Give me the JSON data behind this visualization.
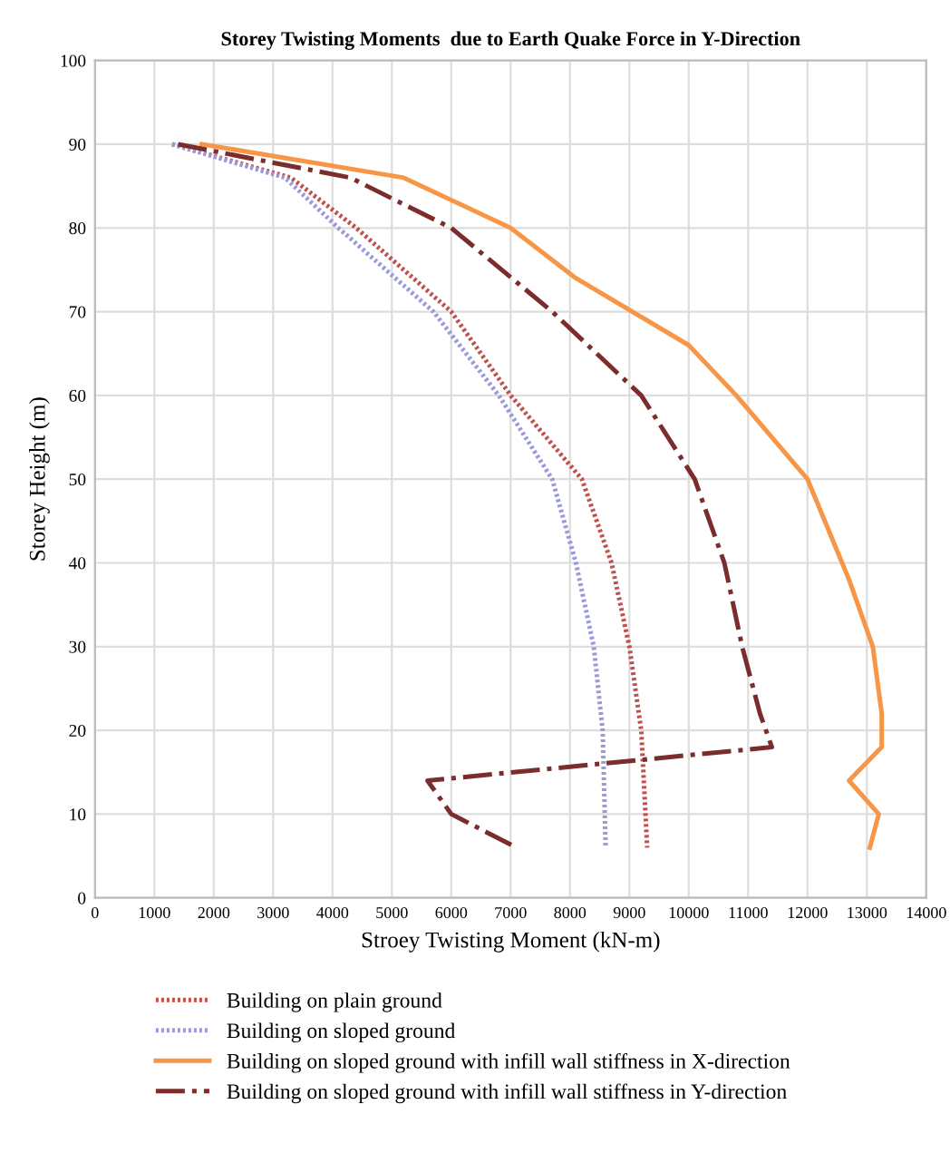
{
  "chart_data": {
    "type": "line",
    "title": "Storey Twisting Moments  due to Earth Quake Force in Y-Direction",
    "xlabel": "Stroey Twisting Moment (kN-m)",
    "ylabel": "Storey Height (m)",
    "xlim": [
      0,
      14000
    ],
    "xticks": [
      0,
      1000,
      2000,
      3000,
      4000,
      5000,
      6000,
      7000,
      8000,
      9000,
      10000,
      11000,
      12000,
      13000,
      14000
    ],
    "ylim": [
      0,
      100
    ],
    "yticks": [
      0,
      10,
      20,
      30,
      40,
      50,
      60,
      70,
      80,
      90,
      100
    ],
    "grid": true,
    "legend": "bottom",
    "marker": "none",
    "series": [
      {
        "name": "Building on plain ground",
        "color": "#c0504d",
        "line_style": "dotted",
        "x": [
          1300,
          3300,
          4400,
          6000,
          7000,
          8200,
          8700,
          9000,
          9200,
          9300
        ],
        "values": [
          90,
          86,
          80,
          70,
          60,
          50,
          40,
          30,
          20,
          6
        ]
      },
      {
        "name": "Building on sloped ground",
        "color": "#9999dd",
        "line_style": "dotted",
        "x": [
          1300,
          3200,
          4100,
          5700,
          6800,
          7700,
          8100,
          8400,
          8550,
          8600
        ],
        "values": [
          90,
          86,
          80,
          70,
          60,
          50,
          40,
          30,
          20,
          6
        ]
      },
      {
        "name": "Building on sloped ground with infill wall stiffness in X-direction",
        "color": "#f79646",
        "line_style": "solid",
        "x": [
          1800,
          5200,
          7000,
          8100,
          10000,
          10800,
          12000,
          12700,
          13100,
          13250,
          13250,
          12700,
          13200,
          13050
        ],
        "values": [
          90,
          86,
          80,
          74,
          66,
          60,
          50,
          38,
          30,
          22,
          18,
          14,
          10,
          6
        ]
      },
      {
        "name": "Building on sloped ground with infill wall stiffness in Y-direction",
        "color": "#7b2c2c",
        "line_style": "dashdot",
        "x": [
          1400,
          4300,
          6000,
          7700,
          9200,
          10100,
          10600,
          10900,
          11200,
          11400,
          5600,
          6000,
          7100
        ],
        "values": [
          90,
          86,
          80,
          70,
          60,
          50,
          40,
          30,
          22,
          18,
          14,
          10,
          6
        ]
      }
    ]
  }
}
